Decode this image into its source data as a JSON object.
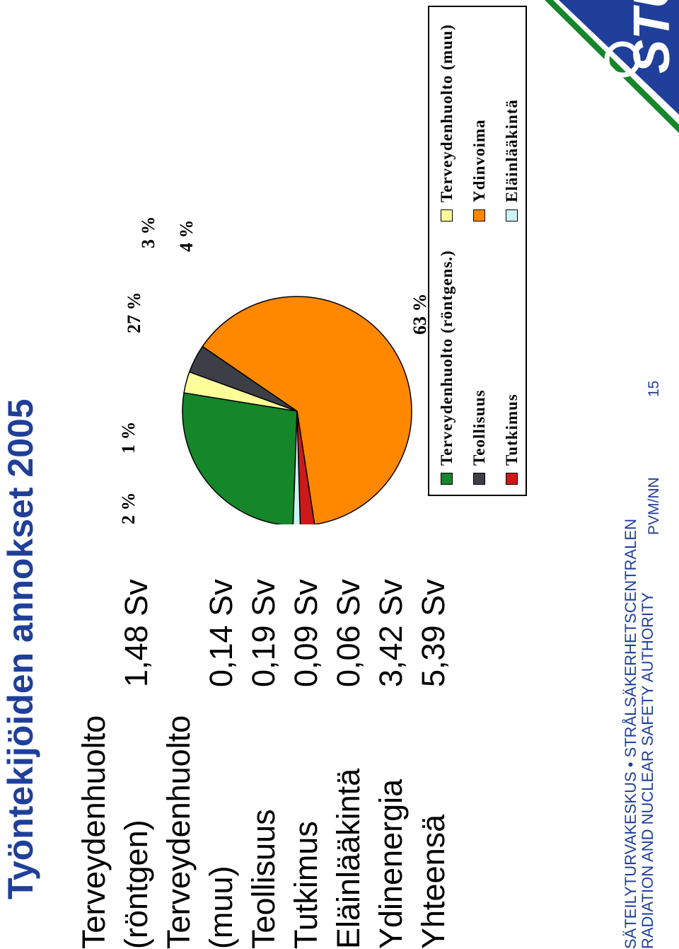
{
  "title": "Työntekijöiden annokset 2005",
  "table": {
    "rows": [
      {
        "label_lines": [
          "Terveydenhuolto",
          "(röntgen)"
        ],
        "value": "1,48 Sv"
      },
      {
        "label_lines": [
          "Terveydenhuolto",
          "(muu)"
        ],
        "value": "0,14 Sv"
      },
      {
        "label_lines": [
          "Teollisuus"
        ],
        "value": "0,19 Sv"
      },
      {
        "label_lines": [
          "Tutkimus"
        ],
        "value": "0,09 Sv"
      },
      {
        "label_lines": [
          "Eläinlääkintä"
        ],
        "value": "0,06 Sv"
      },
      {
        "label_lines": [
          "Ydinenergia"
        ],
        "value": "3,42 Sv"
      },
      {
        "label_lines": [
          "Yhteensä"
        ],
        "value": "5,39 Sv"
      }
    ]
  },
  "chart_data": {
    "type": "pie",
    "title": "",
    "categories": [
      "Terveydenhuolto (röntgens.)",
      "Terveydenhuolto (muu)",
      "Teollisuus",
      "Ydinvoima",
      "Tutkimus",
      "Eläinlääkintä"
    ],
    "values": [
      27,
      3,
      4,
      63,
      2,
      1
    ],
    "value_labels": [
      "27 %",
      "3 %",
      "4 %",
      "63 %",
      "2 %",
      "1 %"
    ],
    "colors": [
      "#15862a",
      "#ffff99",
      "#3c4046",
      "#ff8800",
      "#cc1a1a",
      "#ccf4f4"
    ],
    "legend_placement": "bottom"
  },
  "footer": {
    "org_line1": "SÄTEILYTURVAKESKUS • STRÅLSÄKERHETSCENTRALEN",
    "org_line2": "RADIATION AND NUCLEAR SAFETY AUTHORITY",
    "date": "PVM/NN",
    "page": "15"
  },
  "logo": {
    "text": "STUK",
    "colors": {
      "blue": "#1f3f9a",
      "green": "#15862a"
    }
  }
}
